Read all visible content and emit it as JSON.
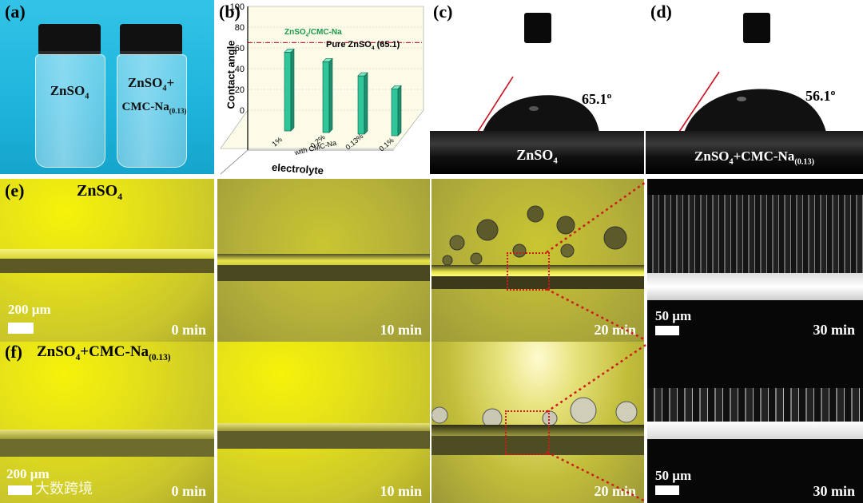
{
  "panels": {
    "a": {
      "label": "(a)",
      "vial1_text": "ZnSO",
      "vial1_sub": "4",
      "vial2_line1": "ZnSO",
      "vial2_sub1": "4",
      "vial2_plus": "+",
      "vial2_line2": "CMC-Na",
      "vial2_sub2": "(0.13)"
    },
    "b": {
      "label": "(b)",
      "reference_text": "Pure ZnSO",
      "reference_sub": "4",
      "reference_val": " (65.1)",
      "legend_text": "ZnSO",
      "legend_sub": "4",
      "legend_rest": "/CMC-Na"
    },
    "c": {
      "label": "(c)",
      "angle": "65.1º",
      "plate_text": "ZnSO",
      "plate_sub": "4"
    },
    "d": {
      "label": "(d)",
      "angle": "56.1º",
      "plate_text": "ZnSO",
      "plate_sub": "4",
      "plate_rest": "+CMC-Na",
      "plate_sub2": "(0.13)"
    },
    "e": {
      "label": "(e)",
      "title": "ZnSO",
      "title_sub": "4",
      "scale": "200 µm",
      "times": [
        "0 min",
        "10 min",
        "20 min",
        "30 min"
      ],
      "zoom_scale": "50 µm"
    },
    "f": {
      "label": "(f)",
      "title": "ZnSO",
      "title_sub": "4",
      "title_rest": "+CMC-Na",
      "title_sub2": "(0.13)",
      "scale": "200 µm",
      "times": [
        "0 min",
        "10 min",
        "20 min",
        "30 min"
      ],
      "zoom_scale": "50 µm",
      "watermark": "大数跨境"
    }
  },
  "chart_data": {
    "type": "bar",
    "categories": [
      "1%",
      "0.2%",
      "0.13%",
      "0.1%"
    ],
    "category_group_label": "with CMC-Na",
    "values": [
      75.8,
      68.2,
      56.1,
      45.2
    ],
    "reference_line": 65.1,
    "ylabel": "Contact angle",
    "xlabel": "electrolyte",
    "yticks": [
      0,
      20,
      40,
      60,
      80,
      100
    ],
    "ylim": [
      0,
      100
    ],
    "colors": {
      "bar": "#2fc79a",
      "reference": "#c0283a",
      "legend_text": "#1a9a4a",
      "background": "#fbfbe8"
    }
  }
}
